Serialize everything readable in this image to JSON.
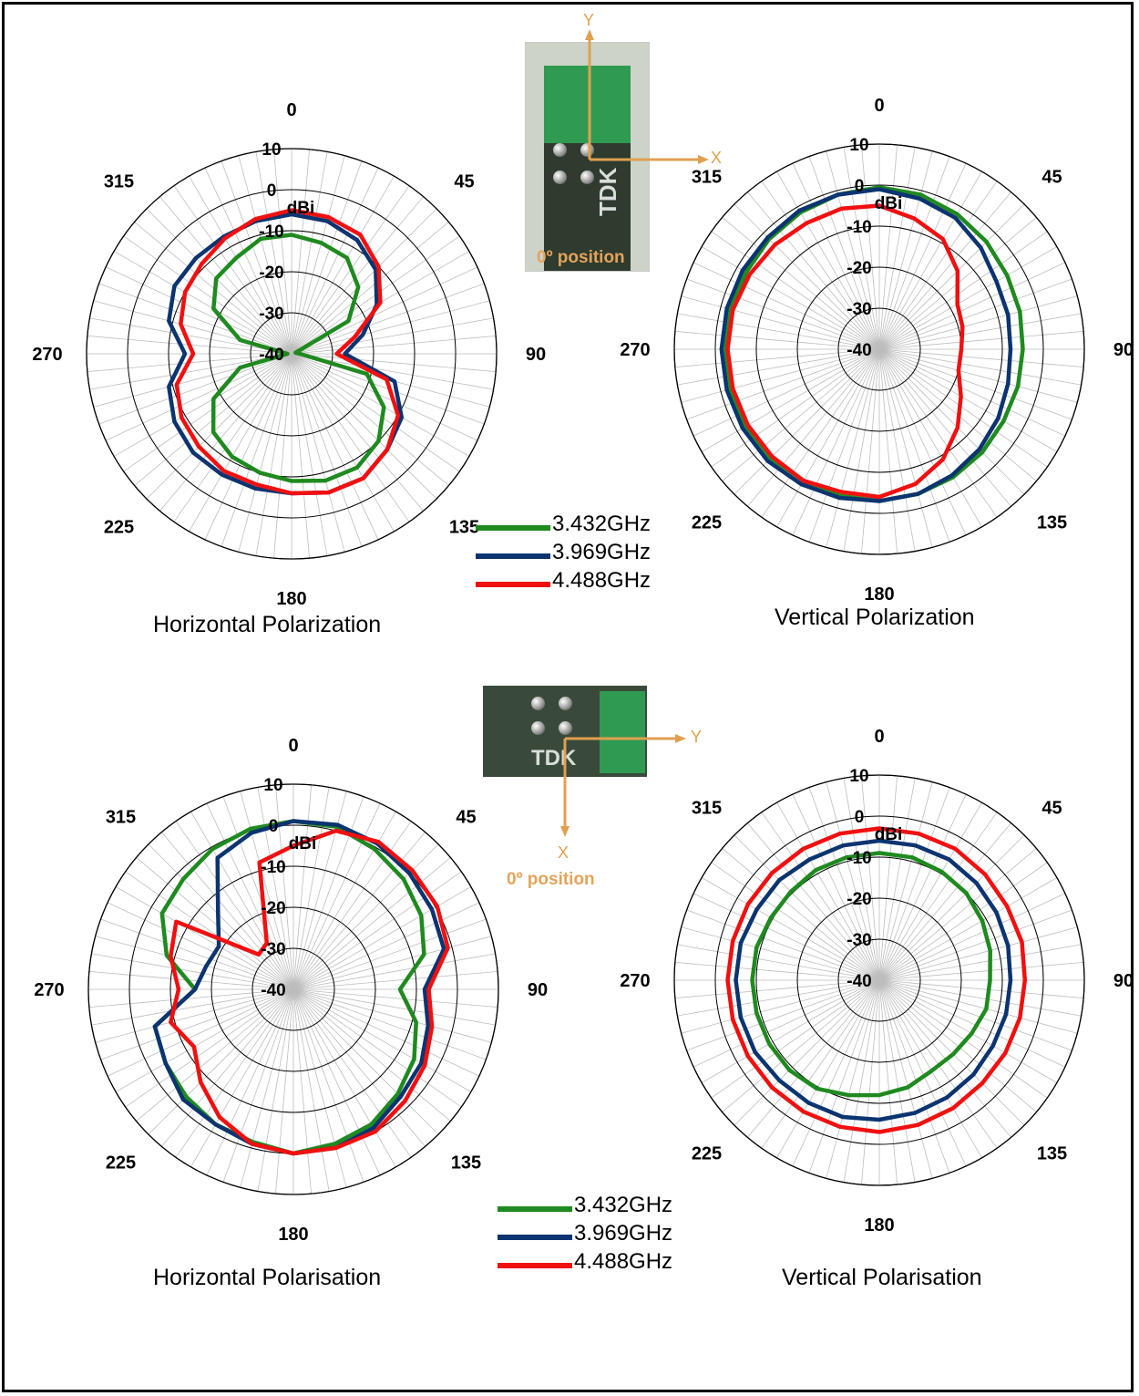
{
  "colors": {
    "green": "#1f8a1f",
    "navy": "#0b3470",
    "red": "#f01010",
    "grid": "#000000",
    "spokes": "#bdbdbd"
  },
  "legend": [
    {
      "label": "3.432GHz",
      "color": "#1f8a1f"
    },
    {
      "label": "3.969GHz",
      "color": "#0b3470"
    },
    {
      "label": "4.488GHz",
      "color": "#f01010"
    }
  ],
  "photos": {
    "top": {
      "brand": "TDK",
      "position_label": "0º position",
      "axis_x": "X",
      "axis_y": "Y"
    },
    "bottom": {
      "brand": "TDK",
      "position_label": "0º position",
      "axis_x": "X",
      "axis_y": "Y"
    }
  },
  "chart_data": [
    {
      "type": "polar",
      "title": "Horizontal Polarization",
      "unit": "dBi",
      "rlim": [
        -40,
        10
      ],
      "radial_ticks": [
        10,
        0,
        -10,
        -20,
        -30,
        -40
      ],
      "angle_labels": [
        "0",
        "45",
        "90",
        "135",
        "180",
        "225",
        "270",
        "315"
      ],
      "angles": [
        0,
        15,
        30,
        45,
        60,
        75,
        90,
        105,
        120,
        135,
        150,
        165,
        180,
        195,
        210,
        225,
        240,
        255,
        270,
        285,
        300,
        315,
        330,
        345
      ],
      "series": [
        {
          "name": "3.432GHz",
          "values": [
            -11,
            -12,
            -13,
            -17,
            -24,
            -39,
            -38,
            -21,
            -14,
            -10,
            -8,
            -8,
            -9,
            -10,
            -11,
            -13,
            -18,
            -27,
            -39,
            -27,
            -18,
            -14,
            -13,
            -11
          ]
        },
        {
          "name": "3.969GHz",
          "values": [
            -6,
            -6.5,
            -8,
            -11,
            -16,
            -22,
            -27,
            -14,
            -9,
            -7,
            -5,
            -5,
            -6,
            -6,
            -6,
            -6,
            -7,
            -9,
            -14,
            -9,
            -7,
            -7,
            -7,
            -6.5
          ]
        },
        {
          "name": "4.488GHz",
          "values": [
            -5,
            -5.5,
            -6.5,
            -10,
            -15,
            -24,
            -29,
            -16,
            -10,
            -7,
            -5,
            -5,
            -6,
            -7,
            -7,
            -8,
            -9,
            -11,
            -16,
            -12,
            -10,
            -9,
            -7.5,
            -6
          ]
        }
      ]
    },
    {
      "type": "polar",
      "title": "Vertical Polarization",
      "unit": "dBi",
      "rlim": [
        -40,
        10
      ],
      "radial_ticks": [
        10,
        0,
        -10,
        -20,
        -30,
        -40
      ],
      "angle_labels": [
        "0",
        "45",
        "90",
        "135",
        "180",
        "225",
        "270",
        "315"
      ],
      "angles": [
        0,
        15,
        30,
        45,
        60,
        75,
        90,
        105,
        120,
        135,
        150,
        165,
        180,
        195,
        210,
        225,
        240,
        255,
        270,
        285,
        300,
        315,
        330,
        345
      ],
      "series": [
        {
          "name": "3.432GHz",
          "values": [
            -0.5,
            -1,
            -2,
            -3,
            -4,
            -4.5,
            -5,
            -5,
            -5,
            -4.5,
            -4,
            -3.5,
            -3,
            -3,
            -3,
            -2.5,
            -2.5,
            -2.5,
            -2.5,
            -2.5,
            -2.5,
            -2,
            -1.5,
            -1
          ]
        },
        {
          "name": "3.969GHz",
          "values": [
            -1,
            -2,
            -3,
            -5,
            -7,
            -7.5,
            -8,
            -7.5,
            -6.5,
            -5.5,
            -4.5,
            -3.5,
            -3,
            -2.5,
            -2,
            -1.5,
            -1.5,
            -1.5,
            -1.5,
            -1.5,
            -1.5,
            -1.5,
            -1,
            -1
          ]
        },
        {
          "name": "4.488GHz",
          "values": [
            -5,
            -7,
            -9,
            -13,
            -18,
            -19,
            -20,
            -20,
            -17,
            -13,
            -9,
            -6,
            -4,
            -4,
            -3,
            -3,
            -3,
            -3,
            -3,
            -3,
            -3.5,
            -4,
            -4.5,
            -4.5
          ]
        }
      ]
    },
    {
      "type": "polar",
      "title": "Horizontal Polarisation",
      "unit": "dBi",
      "rlim": [
        -40,
        10
      ],
      "radial_ticks": [
        10,
        0,
        -10,
        -20,
        -30,
        -40
      ],
      "angle_labels": [
        "0",
        "45",
        "90",
        "135",
        "180",
        "225",
        "270",
        "315"
      ],
      "angles": [
        0,
        15,
        30,
        45,
        60,
        75,
        90,
        105,
        120,
        135,
        150,
        165,
        180,
        195,
        210,
        225,
        240,
        255,
        270,
        285,
        300,
        315,
        330,
        345
      ],
      "series": [
        {
          "name": "3.432GHz",
          "values": [
            1,
            1,
            -0.5,
            -2,
            -4,
            -7,
            -14,
            -9,
            -6,
            -4,
            -2,
            -1,
            0,
            -1.5,
            -2,
            -3,
            -4,
            -5,
            -16,
            -8,
            -3,
            -2,
            -0.5,
            0.5
          ]
        },
        {
          "name": "3.969GHz",
          "values": [
            1,
            1.5,
            1,
            0,
            -1,
            -2,
            -8,
            -6,
            -4,
            -3,
            -1,
            0,
            0,
            -1,
            -2,
            -2,
            -4,
            -5,
            -16,
            -18,
            -19,
            -14,
            -3,
            -0.5
          ]
        },
        {
          "name": "4.488GHz",
          "values": [
            -5,
            0,
            1.5,
            1,
            0.5,
            -1,
            -7,
            -5,
            -3,
            -1.5,
            0,
            0,
            0,
            -1,
            -4,
            -8,
            -12,
            -9,
            -12,
            -9,
            -7,
            -28,
            -27,
            -8
          ]
        }
      ]
    },
    {
      "type": "polar",
      "title": "Vertical Polarisation",
      "unit": "dBi",
      "rlim": [
        -40,
        10
      ],
      "radial_ticks": [
        10,
        0,
        -10,
        -20,
        -30,
        -40
      ],
      "angle_labels": [
        "0",
        "45",
        "90",
        "135",
        "180",
        "225",
        "270",
        "315"
      ],
      "angles": [
        0,
        15,
        30,
        45,
        60,
        75,
        90,
        105,
        120,
        135,
        150,
        165,
        180,
        195,
        210,
        225,
        240,
        255,
        270,
        285,
        300,
        315,
        330,
        345
      ],
      "series": [
        {
          "name": "3.432GHz",
          "values": [
            -9,
            -9,
            -9.5,
            -10,
            -11,
            -12,
            -13,
            -13,
            -14,
            -14.5,
            -14.5,
            -13,
            -12,
            -11,
            -9.5,
            -9,
            -9,
            -9,
            -9,
            -9,
            -9.5,
            -9.5,
            -9,
            -9
          ]
        },
        {
          "name": "3.969GHz",
          "values": [
            -6,
            -6,
            -6,
            -6.5,
            -7,
            -7.5,
            -8,
            -8,
            -8,
            -7.5,
            -7,
            -6.5,
            -6,
            -5.5,
            -5.5,
            -5.5,
            -5,
            -5,
            -5,
            -5,
            -5.5,
            -5.5,
            -6,
            -6
          ]
        },
        {
          "name": "4.488GHz",
          "values": [
            -3,
            -3,
            -3,
            -3.5,
            -4,
            -4,
            -4.5,
            -4.5,
            -4.5,
            -4.5,
            -4,
            -3.5,
            -3,
            -3,
            -3,
            -3,
            -3,
            -3,
            -3,
            -3,
            -3,
            -3,
            -3,
            -3
          ]
        }
      ]
    }
  ]
}
